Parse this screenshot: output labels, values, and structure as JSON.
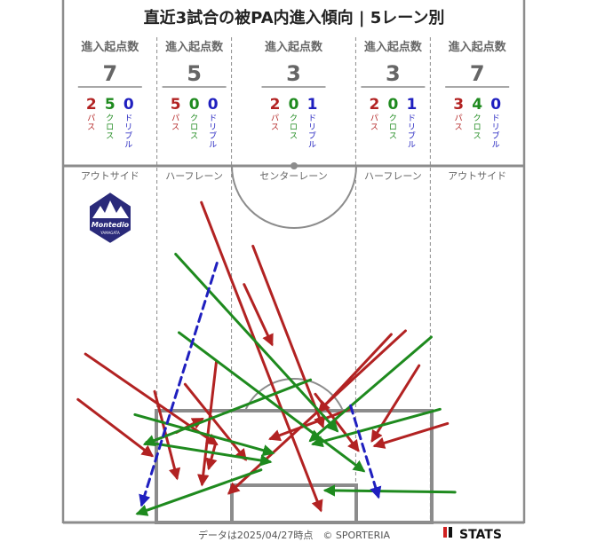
{
  "title": "直近3試合の被PA内進入傾向 | 5レーン別",
  "footer": {
    "note": "データは2025/04/27時点　© SPORTERIA",
    "brand": "STATS"
  },
  "team": {
    "logo_text": "Montedio",
    "logo_subtext": "YAMAGATA"
  },
  "colors": {
    "pass": "#b22222",
    "cross": "#1e8a1e",
    "dribble": "#1f1fbf",
    "field_line": "#8c8c8c",
    "text_gray": "#666666"
  },
  "chart_data": {
    "type": "flow-map",
    "title": "直近3試合の被PA内進入傾向 | 5レーン別",
    "header_label": "進入起点数",
    "category_labels": {
      "pass": "パス",
      "cross": "クロス",
      "dribble": "ドリブル"
    },
    "lanes": [
      {
        "name": "アウトサイド",
        "total": 7,
        "pass": 2,
        "cross": 5,
        "dribble": 0
      },
      {
        "name": "ハーフレーン",
        "total": 5,
        "pass": 5,
        "cross": 0,
        "dribble": 0
      },
      {
        "name": "センターレーン",
        "total": 3,
        "pass": 2,
        "cross": 0,
        "dribble": 1
      },
      {
        "name": "ハーフレーン",
        "total": 3,
        "pass": 2,
        "cross": 0,
        "dribble": 1
      },
      {
        "name": "アウトサイド",
        "total": 7,
        "pass": 3,
        "cross": 4,
        "dribble": 0
      }
    ],
    "field": {
      "x_range": [
        0,
        68
      ],
      "y_range": [
        0,
        40
      ],
      "lane_edges": [
        0,
        13.84,
        24.84,
        43.16,
        54.16,
        68
      ],
      "penalty_area": {
        "x": [
          13.84,
          54.16
        ],
        "y_from_goal": 16.5
      },
      "goal_area": {
        "x": [
          24.84,
          43.16
        ],
        "y_from_goal": 5.5
      }
    },
    "arrows": [
      {
        "type": "pass",
        "from": [
          20.4,
          35.9
        ],
        "to": [
          38.0,
          1.4
        ]
      },
      {
        "type": "pass",
        "from": [
          3.3,
          18.9
        ],
        "to": [
          22.6,
          8.8
        ]
      },
      {
        "type": "pass",
        "from": [
          2.2,
          13.8
        ],
        "to": [
          13.1,
          7.5
        ]
      },
      {
        "type": "pass",
        "from": [
          18.0,
          15.5
        ],
        "to": [
          26.9,
          7.1
        ]
      },
      {
        "type": "pass",
        "from": [
          22.6,
          18.0
        ],
        "to": [
          20.5,
          4.3
        ]
      },
      {
        "type": "pass",
        "from": [
          13.5,
          14.7
        ],
        "to": [
          16.8,
          5.0
        ]
      },
      {
        "type": "pass",
        "from": [
          16.7,
          10.1
        ],
        "to": [
          20.5,
          11.6
        ]
      },
      {
        "type": "pass",
        "from": [
          28.0,
          31.0
        ],
        "to": [
          38.3,
          10.8
        ]
      },
      {
        "type": "pass",
        "from": [
          42.3,
          12.7
        ],
        "to": [
          30.6,
          9.4
        ]
      },
      {
        "type": "pass",
        "from": [
          26.7,
          26.7
        ],
        "to": [
          30.8,
          20.0
        ]
      },
      {
        "type": "pass",
        "from": [
          50.5,
          21.5
        ],
        "to": [
          24.5,
          3.3
        ]
      },
      {
        "type": "pass",
        "from": [
          48.4,
          21.1
        ],
        "to": [
          37.8,
          12.5
        ]
      },
      {
        "type": "pass",
        "from": [
          52.5,
          17.6
        ],
        "to": [
          45.6,
          9.2
        ]
      },
      {
        "type": "pass",
        "from": [
          22.5,
          8.9
        ],
        "to": [
          21.5,
          6.1
        ]
      },
      {
        "type": "pass",
        "from": [
          56.7,
          11.1
        ],
        "to": [
          46.0,
          8.6
        ]
      },
      {
        "type": "pass",
        "from": [
          37.2,
          14.4
        ],
        "to": [
          43.5,
          8.1
        ]
      },
      {
        "type": "cross",
        "from": [
          16.6,
          30.1
        ],
        "to": [
          40.4,
          10.3
        ]
      },
      {
        "type": "cross",
        "from": [
          17.1,
          21.3
        ],
        "to": [
          44.3,
          5.8
        ]
      },
      {
        "type": "cross",
        "from": [
          10.6,
          12.1
        ],
        "to": [
          30.9,
          7.8
        ]
      },
      {
        "type": "cross",
        "from": [
          12.3,
          9.0
        ],
        "to": [
          30.5,
          6.8
        ]
      },
      {
        "type": "cross",
        "from": [
          54.3,
          20.8
        ],
        "to": [
          36.5,
          9.2
        ]
      },
      {
        "type": "cross",
        "from": [
          55.6,
          12.7
        ],
        "to": [
          36.9,
          8.8
        ]
      },
      {
        "type": "cross",
        "from": [
          36.5,
          16.0
        ],
        "to": [
          12.1,
          8.8
        ]
      },
      {
        "type": "cross",
        "from": [
          29.2,
          5.9
        ],
        "to": [
          11.0,
          1.0
        ]
      },
      {
        "type": "cross",
        "from": [
          57.8,
          3.4
        ],
        "to": [
          38.7,
          3.6
        ]
      },
      {
        "type": "dribble",
        "from": [
          22.7,
          29.1
        ],
        "to": [
          11.6,
          2.0
        ]
      },
      {
        "type": "dribble",
        "from": [
          42.4,
          13.1
        ],
        "to": [
          46.5,
          2.9
        ]
      }
    ]
  }
}
